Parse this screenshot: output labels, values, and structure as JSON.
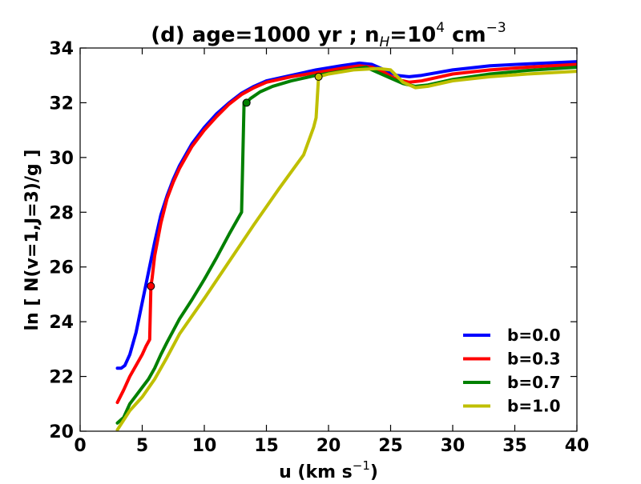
{
  "chart_data": {
    "type": "line",
    "title": {
      "prefix": "(d) age=1000 yr ; n",
      "sub": "H",
      "mid": "=10",
      "sup": "4",
      "unit": " cm",
      "unit_sup": "−3"
    },
    "xlabel": {
      "text": "u (km s",
      "sup": "−1",
      "tail": ")"
    },
    "ylabel": "ln [ N(v=1,J=3)/g ]",
    "xlim": [
      0,
      40
    ],
    "ylim": [
      20,
      34
    ],
    "xticks": [
      0,
      5,
      10,
      15,
      20,
      25,
      30,
      35,
      40
    ],
    "yticks": [
      20,
      22,
      24,
      26,
      28,
      30,
      32,
      34
    ],
    "legend_position": "lower-right",
    "series": [
      {
        "name": "b=0.0",
        "color": "#0000ff",
        "x": [
          3.0,
          3.3,
          3.6,
          4.0,
          4.5,
          5.0,
          5.5,
          6.0,
          6.5,
          7.0,
          7.5,
          8.0,
          9.0,
          10.0,
          11.0,
          12.0,
          13.0,
          14.0,
          15.0,
          17.0,
          19.0,
          21.0,
          22.5,
          23.5,
          24.5,
          25.5,
          26.5,
          27.5,
          30.0,
          33.0,
          36.0,
          40.0
        ],
        "y": [
          22.3,
          22.3,
          22.4,
          22.8,
          23.6,
          24.7,
          25.8,
          26.9,
          27.9,
          28.6,
          29.2,
          29.7,
          30.5,
          31.1,
          31.6,
          32.0,
          32.35,
          32.6,
          32.8,
          33.0,
          33.2,
          33.35,
          33.45,
          33.4,
          33.2,
          33.0,
          32.95,
          33.0,
          33.2,
          33.35,
          33.42,
          33.5
        ]
      },
      {
        "name": "b=0.3",
        "color": "#ff0000",
        "x": [
          3.0,
          3.5,
          4.0,
          4.5,
          5.0,
          5.3,
          5.6,
          5.7,
          5.8,
          6.0,
          6.5,
          7.0,
          7.5,
          8.0,
          9.0,
          10.0,
          11.0,
          12.0,
          13.0,
          14.0,
          15.0,
          17.0,
          19.0,
          21.0,
          22.5,
          23.5,
          24.5,
          25.5,
          26.5,
          27.5,
          30.0,
          33.0,
          36.0,
          40.0
        ],
        "y": [
          21.05,
          21.5,
          22.0,
          22.4,
          22.8,
          23.1,
          23.35,
          25.3,
          25.6,
          26.4,
          27.6,
          28.5,
          29.1,
          29.6,
          30.4,
          31.0,
          31.5,
          31.95,
          32.3,
          32.55,
          32.75,
          32.95,
          33.1,
          33.25,
          33.35,
          33.3,
          33.1,
          32.85,
          32.75,
          32.8,
          33.05,
          33.2,
          33.3,
          33.4
        ]
      },
      {
        "name": "b=0.7",
        "color": "#008000",
        "x": [
          3.0,
          3.5,
          4.0,
          4.5,
          5.0,
          5.5,
          6.0,
          6.5,
          7.0,
          8.0,
          9.0,
          10.0,
          11.0,
          12.0,
          13.0,
          13.2,
          13.4,
          13.7,
          14.5,
          15.5,
          17.0,
          19.0,
          21.0,
          23.0,
          24.0,
          25.0,
          26.0,
          27.0,
          28.0,
          30.0,
          33.0,
          36.0,
          40.0
        ],
        "y": [
          20.3,
          20.5,
          21.0,
          21.3,
          21.6,
          21.9,
          22.3,
          22.8,
          23.25,
          24.1,
          24.8,
          25.55,
          26.35,
          27.2,
          28.0,
          32.0,
          32.0,
          32.15,
          32.4,
          32.6,
          32.8,
          33.0,
          33.15,
          33.3,
          33.1,
          32.9,
          32.7,
          32.6,
          32.65,
          32.85,
          33.05,
          33.18,
          33.3
        ]
      },
      {
        "name": "b=1.0",
        "color": "#bfbf00",
        "x": [
          3.0,
          3.5,
          4.0,
          5.0,
          6.0,
          7.0,
          8.0,
          10.0,
          12.0,
          14.0,
          16.0,
          18.0,
          18.8,
          19.0,
          19.2,
          20.0,
          22.0,
          24.0,
          25.0,
          26.0,
          27.0,
          28.0,
          30.0,
          33.0,
          36.0,
          40.0
        ],
        "y": [
          20.05,
          20.4,
          20.75,
          21.25,
          21.9,
          22.7,
          23.55,
          24.85,
          26.2,
          27.55,
          28.85,
          30.1,
          31.1,
          31.45,
          32.95,
          33.05,
          33.2,
          33.25,
          33.2,
          32.75,
          32.55,
          32.6,
          32.8,
          32.95,
          33.05,
          33.15
        ]
      }
    ],
    "markers": [
      {
        "series": "b=0.3",
        "x": 5.7,
        "y": 25.3,
        "color": "#ff0000"
      },
      {
        "series": "b=0.7",
        "x": 13.4,
        "y": 32.0,
        "color": "#008000"
      },
      {
        "series": "b=1.0",
        "x": 19.2,
        "y": 32.95,
        "color": "#bfbf00"
      }
    ]
  }
}
